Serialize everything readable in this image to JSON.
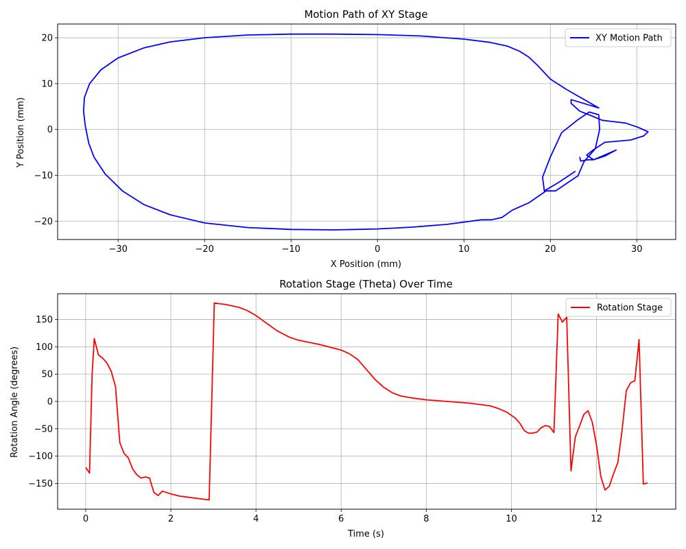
{
  "chart_data": [
    {
      "type": "line",
      "title": "Motion Path of XY Stage",
      "xlabel": "X Position (mm)",
      "ylabel": "Y Position (mm)",
      "xlim": [
        -37,
        34.5
      ],
      "ylim": [
        -24,
        23
      ],
      "xticks": [
        -30,
        -20,
        -10,
        0,
        10,
        20,
        30
      ],
      "yticks": [
        -20,
        -10,
        0,
        10,
        20
      ],
      "grid": true,
      "legend_position": "top-right",
      "series": [
        {
          "name": "XY Motion Path",
          "color": "#0000ff",
          "points": [
            [
              22.9,
              -9.1
            ],
            [
              21.0,
              -11.5
            ],
            [
              19.3,
              -13.4
            ],
            [
              19.1,
              -10.4
            ],
            [
              20.0,
              -6.0
            ],
            [
              21.3,
              -0.7
            ],
            [
              23.1,
              2.0
            ],
            [
              24.5,
              3.8
            ],
            [
              25.6,
              3.2
            ],
            [
              25.7,
              0
            ],
            [
              25.2,
              -4.2
            ],
            [
              23.9,
              -7.0
            ],
            [
              23.2,
              -10.1
            ],
            [
              20.6,
              -13.4
            ],
            [
              19.4,
              -13.4
            ],
            [
              19.5,
              -13.4
            ],
            [
              17.5,
              -16.0
            ],
            [
              15.6,
              -17.6
            ],
            [
              14.4,
              -19.2
            ],
            [
              13.2,
              -19.7
            ],
            [
              12.0,
              -19.7
            ],
            [
              8.0,
              -20.7
            ],
            [
              4.0,
              -21.3
            ],
            [
              0,
              -21.7
            ],
            [
              -5.0,
              -21.9
            ],
            [
              -10.0,
              -21.8
            ],
            [
              -15.0,
              -21.4
            ],
            [
              -20.0,
              -20.4
            ],
            [
              -24.0,
              -18.6
            ],
            [
              -27.0,
              -16.4
            ],
            [
              -29.5,
              -13.4
            ],
            [
              -31.5,
              -9.7
            ],
            [
              -32.8,
              -6.0
            ],
            [
              -33.4,
              -3.0
            ],
            [
              -33.8,
              0.8
            ],
            [
              -34.0,
              4.0
            ],
            [
              -33.9,
              7.0
            ],
            [
              -33.3,
              10.0
            ],
            [
              -32.0,
              13.0
            ],
            [
              -30.0,
              15.6
            ],
            [
              -27.0,
              17.8
            ],
            [
              -24.0,
              19.1
            ],
            [
              -20.0,
              20.0
            ],
            [
              -15.0,
              20.6
            ],
            [
              -10.0,
              20.8
            ],
            [
              -5.0,
              20.8
            ],
            [
              0,
              20.7
            ],
            [
              5.0,
              20.4
            ],
            [
              10.0,
              19.7
            ],
            [
              13.0,
              19.0
            ],
            [
              15.0,
              18.2
            ],
            [
              16.5,
              17.0
            ],
            [
              17.5,
              15.8
            ],
            [
              18.5,
              14.0
            ],
            [
              20.0,
              11.0
            ],
            [
              21.8,
              8.8
            ],
            [
              25.6,
              4.7
            ],
            [
              22.4,
              6.5
            ],
            [
              22.4,
              5.7
            ],
            [
              23.4,
              4.0
            ],
            [
              25.0,
              2.8
            ],
            [
              26.0,
              2.0
            ],
            [
              28.7,
              1.4
            ],
            [
              30.1,
              0.5
            ],
            [
              31.3,
              -0.5
            ],
            [
              30.8,
              -1.4
            ],
            [
              29.3,
              -2.3
            ],
            [
              26.3,
              -2.8
            ],
            [
              25.0,
              -4.4
            ],
            [
              24.2,
              -5.6
            ],
            [
              25.0,
              -6.6
            ],
            [
              27.6,
              -4.5
            ],
            [
              26.3,
              -5.8
            ],
            [
              25.0,
              -6.6
            ],
            [
              24.4,
              -6.6
            ],
            [
              23.5,
              -6.9
            ],
            [
              23.4,
              -6.0
            ]
          ]
        }
      ]
    },
    {
      "type": "line",
      "title": "Rotation Stage (Theta) Over Time",
      "xlabel": "Time (s)",
      "ylabel": "Rotation Angle (degrees)",
      "xlim": [
        -0.66,
        13.86
      ],
      "ylim": [
        -197,
        197
      ],
      "xticks": [
        0,
        2,
        4,
        6,
        8,
        10,
        12
      ],
      "yticks": [
        -150,
        -100,
        -50,
        0,
        50,
        100,
        150
      ],
      "grid": true,
      "legend_position": "top-right",
      "series": [
        {
          "name": "Rotation Stage",
          "color": "#ff0000",
          "points": [
            [
              0,
              -121
            ],
            [
              0.09,
              -131
            ],
            [
              0.15,
              50
            ],
            [
              0.2,
              115
            ],
            [
              0.3,
              85
            ],
            [
              0.4,
              79
            ],
            [
              0.5,
              70
            ],
            [
              0.6,
              55
            ],
            [
              0.7,
              27
            ],
            [
              0.8,
              -75
            ],
            [
              0.9,
              -95
            ],
            [
              1.0,
              -103
            ],
            [
              1.1,
              -123
            ],
            [
              1.2,
              -134
            ],
            [
              1.3,
              -140
            ],
            [
              1.4,
              -138
            ],
            [
              1.5,
              -140
            ],
            [
              1.6,
              -166
            ],
            [
              1.7,
              -172
            ],
            [
              1.8,
              -164
            ],
            [
              2.0,
              -169
            ],
            [
              2.2,
              -173
            ],
            [
              2.5,
              -176
            ],
            [
              2.9,
              -180
            ],
            [
              3.02,
              180
            ],
            [
              3.3,
              177
            ],
            [
              3.6,
              172
            ],
            [
              3.8,
              166
            ],
            [
              4.0,
              157
            ],
            [
              4.3,
              140
            ],
            [
              4.5,
              129
            ],
            [
              4.8,
              117
            ],
            [
              5.0,
              112
            ],
            [
              5.5,
              104
            ],
            [
              5.8,
              98
            ],
            [
              6.0,
              94
            ],
            [
              6.2,
              87
            ],
            [
              6.4,
              76
            ],
            [
              6.6,
              58
            ],
            [
              6.8,
              40
            ],
            [
              7.0,
              26
            ],
            [
              7.2,
              16
            ],
            [
              7.4,
              10
            ],
            [
              7.7,
              6
            ],
            [
              8.0,
              3
            ],
            [
              8.5,
              0
            ],
            [
              9.0,
              -3
            ],
            [
              9.5,
              -8
            ],
            [
              9.7,
              -13
            ],
            [
              9.9,
              -20
            ],
            [
              10.1,
              -31
            ],
            [
              10.2,
              -40
            ],
            [
              10.3,
              -53
            ],
            [
              10.4,
              -58
            ],
            [
              10.5,
              -58
            ],
            [
              10.6,
              -56
            ],
            [
              10.7,
              -48
            ],
            [
              10.8,
              -44
            ],
            [
              10.9,
              -46
            ],
            [
              11.0,
              -57
            ],
            [
              11.1,
              160
            ],
            [
              11.2,
              145
            ],
            [
              11.3,
              154
            ],
            [
              11.4,
              -127
            ],
            [
              11.5,
              -65
            ],
            [
              11.6,
              -45
            ],
            [
              11.7,
              -24
            ],
            [
              11.8,
              -17
            ],
            [
              11.9,
              -38
            ],
            [
              12.0,
              -80
            ],
            [
              12.1,
              -137
            ],
            [
              12.2,
              -162
            ],
            [
              12.3,
              -155
            ],
            [
              12.4,
              -132
            ],
            [
              12.5,
              -112
            ],
            [
              12.6,
              -53
            ],
            [
              12.7,
              20
            ],
            [
              12.8,
              34
            ],
            [
              12.9,
              38
            ],
            [
              13.0,
              113
            ],
            [
              13.1,
              -151
            ],
            [
              13.2,
              -149
            ]
          ]
        }
      ]
    }
  ]
}
